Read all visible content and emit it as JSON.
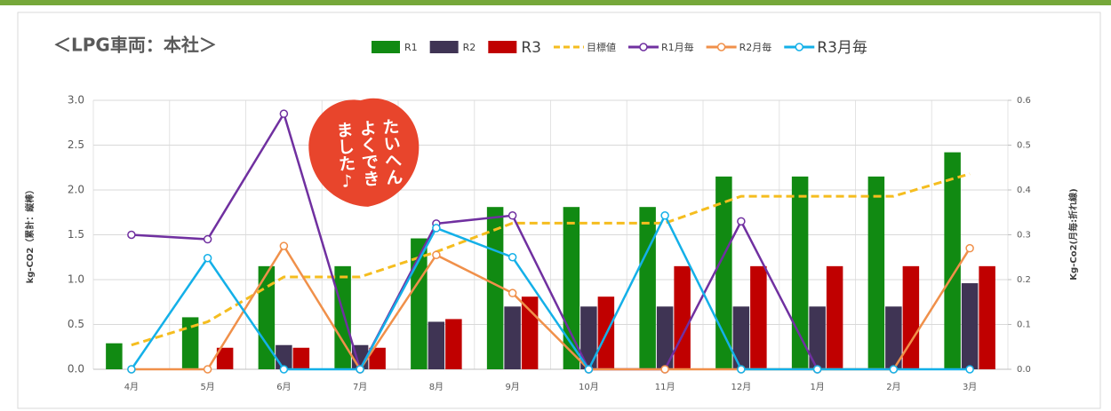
{
  "chart_data": {
    "type": "combo",
    "title": "＜LPG車両：本社＞",
    "y_label": "kg-CO2（累計：縦棒）",
    "y2_label": "Kg-Co2(月毎:折れ線)",
    "categories": [
      "4月",
      "5月",
      "6月",
      "7月",
      "8月",
      "9月",
      "10月",
      "11月",
      "12月",
      "1月",
      "2月",
      "3月"
    ],
    "ylim": [
      0,
      3
    ],
    "yticks": [
      {
        "value": 0,
        "label": "0.0"
      },
      {
        "value": 0.5,
        "label": "0.5"
      },
      {
        "value": 1,
        "label": "1.0"
      },
      {
        "value": 1.5,
        "label": "1.5"
      },
      {
        "value": 2,
        "label": "2.0"
      },
      {
        "value": 2.5,
        "label": "2.5"
      },
      {
        "value": 3,
        "label": "3.0"
      }
    ],
    "y2lim": [
      0,
      0.6
    ],
    "y2ticks": [
      {
        "value": 0,
        "label": "0.0"
      },
      0.1,
      0.2,
      0.3,
      0.4,
      0.5,
      0.6
    ],
    "grid": true,
    "legend": "top",
    "series": [
      {
        "name": "R1",
        "kind": "bar",
        "color": "#118a12",
        "values": [
          0.29,
          0.58,
          1.15,
          1.15,
          1.46,
          1.81,
          1.81,
          1.81,
          2.15,
          2.15,
          2.15,
          2.42
        ]
      },
      {
        "name": "R2",
        "kind": "bar",
        "color": "#3f3454",
        "values": [
          0,
          0,
          0.27,
          0.27,
          0.53,
          0.7,
          0.7,
          0.7,
          0.7,
          0.7,
          0.7,
          0.96
        ]
      },
      {
        "name": "R3",
        "kind": "bar",
        "color": "#c00000",
        "values": [
          0,
          0.24,
          0.24,
          0.24,
          0.56,
          0.81,
          0.81,
          1.15,
          1.15,
          1.15,
          1.15,
          1.15
        ]
      },
      {
        "name": "目標値",
        "kind": "line",
        "dashed": true,
        "color": "#f5bd1f",
        "values": [
          0.27,
          0.53,
          1.03,
          1.03,
          1.31,
          1.63,
          1.63,
          1.63,
          1.93,
          1.93,
          1.93,
          2.18
        ]
      },
      {
        "name": "R1月毎",
        "kind": "line",
        "axis": "y2",
        "markers": true,
        "color": "#7030a0",
        "values": [
          0.3,
          0.29,
          0.57,
          0,
          0.325,
          0.343,
          0,
          0,
          0.33,
          0,
          null,
          null
        ]
      },
      {
        "name": "R2月毎",
        "kind": "line",
        "axis": "y2",
        "markers": true,
        "color": "#f0904a",
        "values": [
          0,
          0,
          0.275,
          0,
          0.255,
          0.17,
          0,
          0,
          0,
          0,
          0,
          0.27
        ]
      },
      {
        "name": "R3月毎",
        "kind": "line",
        "axis": "y2",
        "markers": true,
        "color": "#14b0e8",
        "values": [
          0,
          0.248,
          0,
          0,
          0.315,
          0.25,
          0,
          0.343,
          0,
          0,
          0,
          0
        ]
      }
    ]
  },
  "stamp": {
    "lines": [
      "たいへん",
      "よくでき",
      "ました♪"
    ]
  }
}
